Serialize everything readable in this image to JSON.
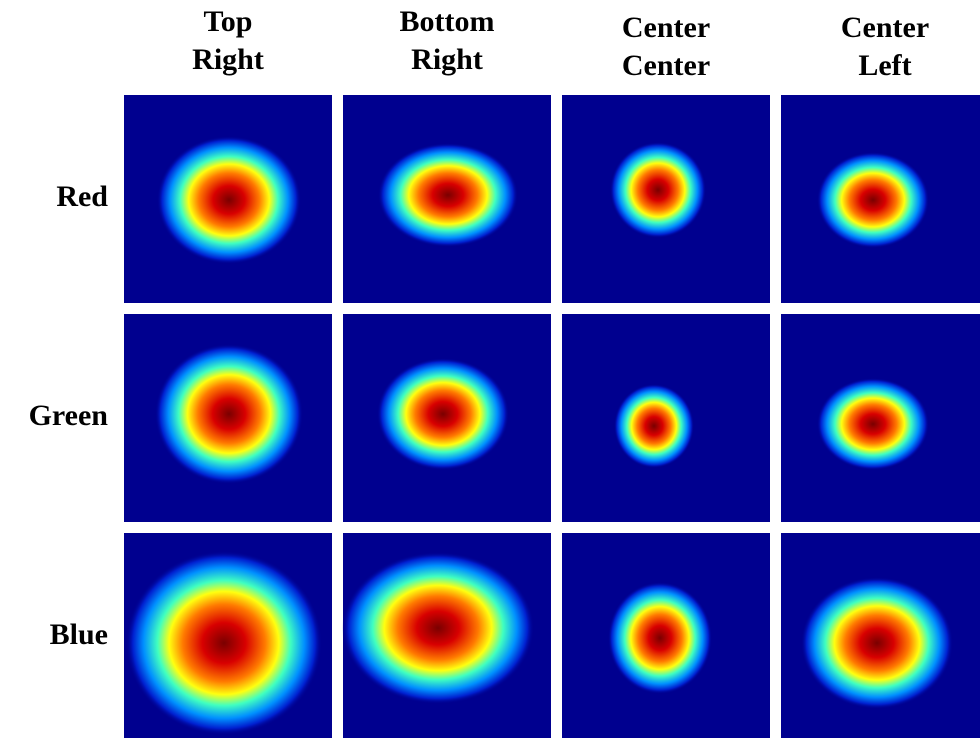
{
  "columns": [
    {
      "lines": [
        "Top",
        "Right"
      ]
    },
    {
      "lines": [
        "Bottom",
        "Right"
      ]
    },
    {
      "lines": [
        "Center",
        "Center"
      ]
    },
    {
      "lines": [
        "Center",
        "Left"
      ]
    }
  ],
  "rows": [
    "Red",
    "Green",
    "Blue"
  ]
}
